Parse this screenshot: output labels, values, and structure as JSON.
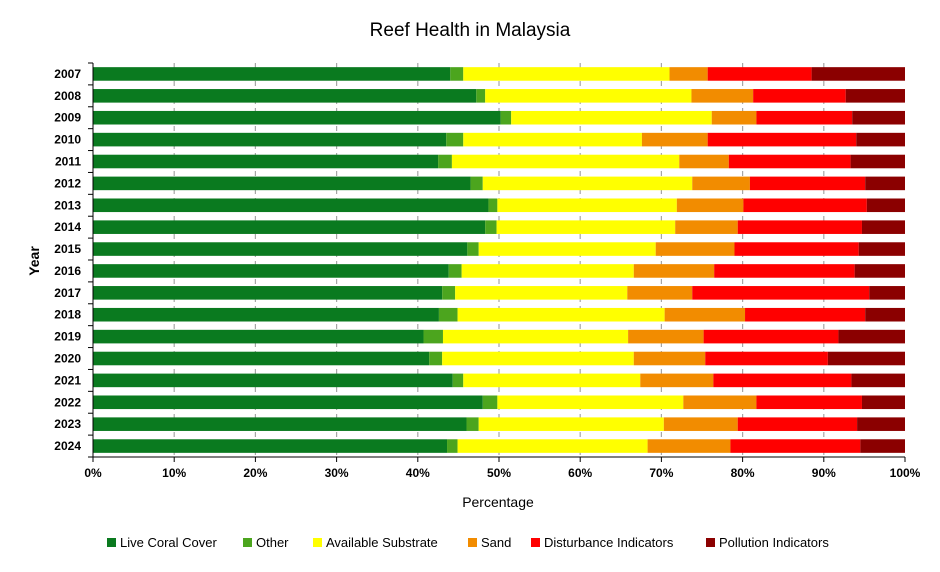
{
  "chart_data": {
    "type": "bar",
    "orientation": "horizontal",
    "stacked": "percent",
    "title": "Reef Health in Malaysia",
    "xlabel": "Percentage",
    "ylabel": "Year",
    "xlim": [
      0,
      100
    ],
    "x_ticks": [
      "0%",
      "10%",
      "20%",
      "30%",
      "40%",
      "50%",
      "60%",
      "70%",
      "80%",
      "90%",
      "100%"
    ],
    "grid": "vertical dashed",
    "legend_position": "bottom",
    "categories": [
      "2007",
      "2008",
      "2009",
      "2010",
      "2011",
      "2012",
      "2013",
      "2014",
      "2015",
      "2016",
      "2017",
      "2018",
      "2019",
      "2020",
      "2021",
      "2022",
      "2023",
      "2024"
    ],
    "series": [
      {
        "name": "Live Coral Cover",
        "color": "#0a7a1f",
        "values": [
          44.0,
          47.2,
          50.2,
          43.5,
          42.5,
          46.5,
          48.7,
          48.3,
          46.1,
          43.8,
          43.0,
          42.6,
          40.7,
          41.4,
          44.3,
          48.0,
          46.0,
          43.6
        ]
      },
      {
        "name": "Other",
        "color": "#4ca51e",
        "values": [
          1.6,
          1.1,
          1.3,
          2.1,
          1.7,
          1.5,
          1.1,
          1.4,
          1.4,
          1.6,
          1.6,
          2.3,
          2.4,
          1.6,
          1.3,
          1.8,
          1.5,
          1.3
        ]
      },
      {
        "name": "Available Substrate",
        "color": "#ffff00",
        "values": [
          25.4,
          25.4,
          24.7,
          22.0,
          28.0,
          25.8,
          22.1,
          22.0,
          21.8,
          21.2,
          21.2,
          25.5,
          22.8,
          23.6,
          21.8,
          22.9,
          22.8,
          23.4
        ]
      },
      {
        "name": "Sand",
        "color": "#f28c00",
        "values": [
          4.7,
          7.6,
          5.5,
          8.1,
          6.1,
          7.1,
          8.2,
          7.7,
          9.7,
          9.9,
          8.0,
          9.9,
          9.3,
          8.8,
          9.0,
          9.0,
          9.1,
          10.2
        ]
      },
      {
        "name": "Disturbance Indicators",
        "color": "#ff0000",
        "values": [
          12.8,
          11.4,
          11.8,
          18.3,
          15.0,
          14.2,
          15.2,
          15.3,
          15.3,
          17.3,
          21.8,
          14.8,
          16.6,
          15.1,
          17.0,
          13.0,
          14.7,
          16.0
        ]
      },
      {
        "name": "Pollution Indicators",
        "color": "#8b0000",
        "values": [
          11.5,
          7.3,
          6.5,
          6.0,
          6.7,
          4.9,
          4.7,
          5.3,
          5.7,
          6.2,
          4.4,
          4.9,
          8.2,
          9.5,
          6.6,
          5.3,
          5.9,
          5.5
        ]
      }
    ]
  }
}
